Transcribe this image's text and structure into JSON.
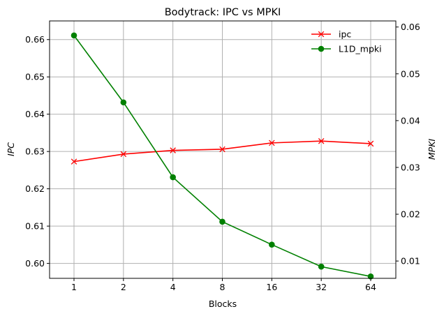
{
  "chart_data": {
    "type": "line",
    "title": "Bodytrack: IPC vs MPKI",
    "xlabel": "Blocks",
    "ylabel_left": "IPC",
    "ylabel_right": "MPKI",
    "categories": [
      "1",
      "2",
      "4",
      "8",
      "16",
      "32",
      "64"
    ],
    "ylim_left": [
      0.596,
      0.665
    ],
    "ylim_right": [
      0.0063,
      0.0613
    ],
    "yticks_left": [
      "0.60",
      "0.61",
      "0.62",
      "0.63",
      "0.64",
      "0.65",
      "0.66"
    ],
    "yticks_right": [
      "0.01",
      "0.02",
      "0.03",
      "0.04",
      "0.05",
      "0.06"
    ],
    "grid": true,
    "legend_position": "top-right",
    "series": [
      {
        "name": "ipc",
        "axis": "left",
        "color": "#ff0000",
        "marker": "x",
        "values": [
          0.6273,
          0.6293,
          0.6303,
          0.6306,
          0.6323,
          0.6328,
          0.6321
        ]
      },
      {
        "name": "L1D_mpki",
        "axis": "right",
        "color": "#008000",
        "marker": "o",
        "values": [
          0.0582,
          0.0439,
          0.0279,
          0.0184,
          0.0135,
          0.0088,
          0.0067
        ]
      }
    ]
  }
}
